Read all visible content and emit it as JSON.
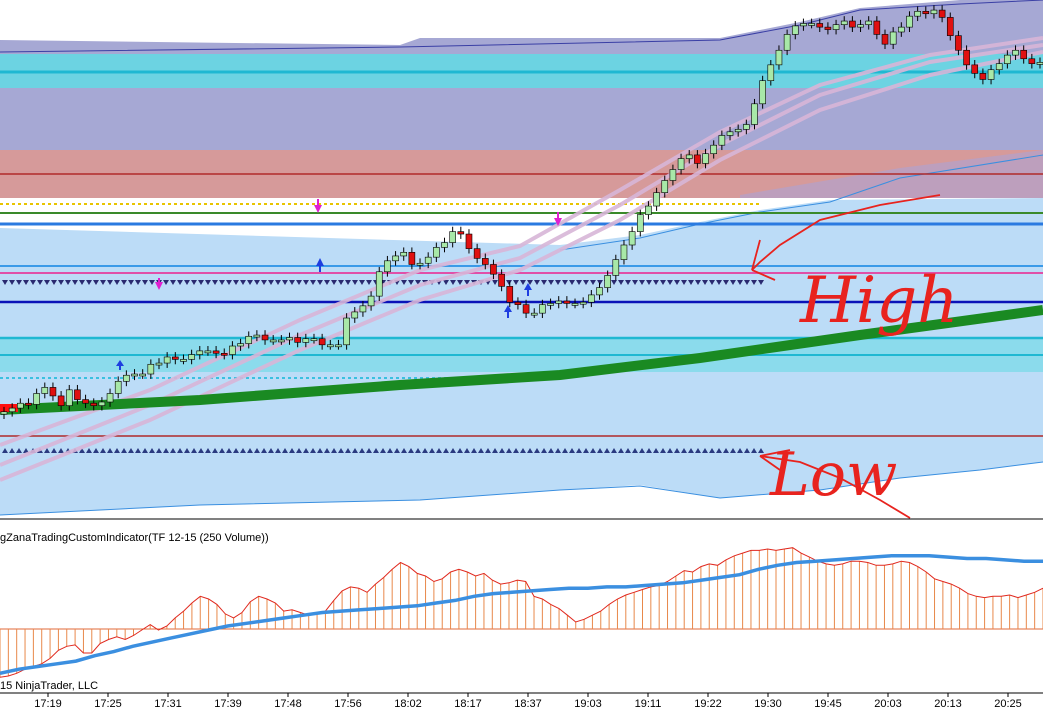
{
  "indicator_title": "gZanaTradingCustomIndicator(TF 12-15 (250 Volume))",
  "copyright": "15 NinjaTrader, LLC",
  "annotations": {
    "high": "High",
    "low": "Low",
    "color": "#e8231e"
  },
  "colors": {
    "up_candle": "#a8e8a8",
    "down_candle": "#e01010",
    "value_area_upper": "#7f82c0",
    "value_area_lower": "#b9d8f6",
    "red_zone": "#c97070",
    "cyan_zone": "#5fd6e4",
    "green_ma": "#1a8a22",
    "oscillator_line": "#3b8fe0",
    "histogram": "#e26a3a"
  },
  "chart_data": [
    {
      "type": "candlestick",
      "x_ticks": [
        "17:19",
        "17:25",
        "17:31",
        "17:39",
        "17:48",
        "17:56",
        "18:02",
        "18:17",
        "18:37",
        "19:03",
        "19:11",
        "19:22",
        "19:30",
        "19:45",
        "20:03",
        "20:13",
        "20:25"
      ],
      "close": [
        15,
        18,
        22,
        21,
        30,
        35,
        28,
        20,
        33,
        25,
        22,
        20,
        23,
        30,
        40,
        45,
        46,
        46,
        54,
        55,
        60,
        58,
        58,
        62,
        65,
        65,
        63,
        62,
        69,
        71,
        77,
        78,
        74,
        74,
        74,
        76,
        72,
        75,
        75,
        70,
        70,
        70,
        92,
        97,
        102,
        110,
        130,
        139,
        143,
        146,
        136,
        137,
        142,
        150,
        154,
        163,
        161,
        149,
        141,
        136,
        128,
        118,
        105,
        103,
        96,
        96,
        103,
        104,
        106,
        104,
        104,
        105,
        111,
        117,
        127,
        140,
        152,
        163,
        177,
        184,
        195,
        205,
        214,
        223,
        226,
        219,
        227,
        234,
        242,
        245,
        247,
        251,
        268,
        287,
        300,
        312,
        325,
        332,
        334,
        334,
        331,
        329,
        333,
        336,
        331,
        333,
        336,
        325,
        317,
        327,
        331,
        340,
        344,
        342,
        345,
        339,
        324,
        312,
        300,
        293,
        288,
        296,
        301,
        308,
        312,
        305,
        301,
        302
      ]
    },
    {
      "type": "bar+line",
      "title": "gZanaTradingCustomIndicator(TF 12-15 (250 Volume))",
      "histogram_values": [
        2,
        3,
        5,
        8,
        10,
        12,
        16,
        22,
        25,
        26,
        20,
        20,
        27,
        30,
        32,
        30,
        33,
        37,
        41,
        37,
        40,
        46,
        51,
        57,
        62,
        60,
        56,
        49,
        46,
        50,
        58,
        62,
        60,
        57,
        51,
        52,
        50,
        48,
        49,
        51,
        59,
        66,
        69,
        68,
        65,
        71,
        76,
        82,
        87,
        84,
        79,
        77,
        73,
        75,
        80,
        82,
        80,
        77,
        79,
        74,
        71,
        72,
        74,
        73,
        62,
        60,
        56,
        53,
        48,
        43,
        45,
        48,
        51,
        56,
        60,
        63,
        65,
        67,
        69,
        70,
        73,
        77,
        81,
        80,
        84,
        86,
        85,
        89,
        92,
        94,
        96,
        96,
        97,
        96,
        97,
        98,
        94,
        91,
        88,
        86,
        85,
        86,
        88,
        88,
        87,
        85,
        85,
        86,
        88,
        87,
        84,
        80,
        75,
        73,
        71,
        68,
        64,
        62,
        61,
        62,
        62,
        63,
        61,
        63,
        65,
        68
      ],
      "line_values": [
        5,
        8,
        10,
        12,
        14,
        18,
        21,
        25,
        28,
        31,
        34,
        37,
        40,
        42,
        44,
        46,
        48,
        50,
        51,
        52,
        53,
        54,
        55,
        57,
        59,
        62,
        64,
        65,
        66,
        67,
        68,
        68,
        69,
        69,
        70,
        71,
        72,
        74,
        76,
        78,
        82,
        85,
        87,
        88,
        89,
        90,
        91,
        92,
        92,
        92,
        91,
        90,
        90,
        89,
        88,
        88
      ],
      "ylim": [
        0,
        100
      ]
    }
  ]
}
